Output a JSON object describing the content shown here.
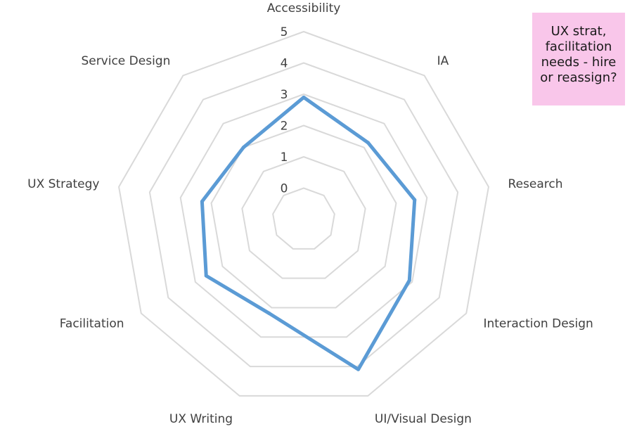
{
  "chart_data": {
    "type": "radar",
    "categories": [
      "Accessibility",
      "IA",
      "Research",
      "Interaction Design",
      "UI/Visual Design",
      "UX Writing",
      "Facilitation",
      "UX Strategy",
      "Service Design"
    ],
    "series": [
      {
        "values": [
          2.9,
          2.2,
          2.6,
          2.9,
          4.1,
          2.2,
          2.6,
          2.3,
          2.0
        ]
      }
    ],
    "rlim": [
      0,
      5
    ],
    "ticks": [
      "0",
      "1",
      "2",
      "3",
      "4",
      "5"
    ],
    "grid": true,
    "colors": {
      "series": "#5b9bd5",
      "grid": "#d9d9d9",
      "text": "#404040"
    }
  },
  "note": {
    "lines": [
      "UX strat,",
      "facilitation",
      "needs - hire",
      "or reassign?"
    ],
    "color": "#f9c6ea"
  }
}
